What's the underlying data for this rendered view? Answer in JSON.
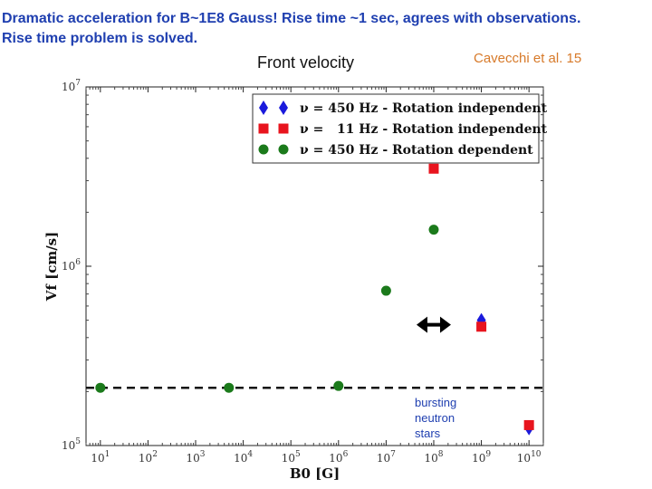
{
  "headline": {
    "line1": "Dramatic acceleration for B~1E8 Gauss! Rise time ~1 sec, agrees with observations.",
    "line2": "Rise time problem is solved."
  },
  "subtitle": "Front velocity",
  "citation": "Cavecchi et al. 15",
  "annotation": [
    "bursting",
    "neutron",
    "stars"
  ],
  "colors": {
    "headline": "#1f3fb0",
    "citation": "#d77a2a",
    "blue": "#1a1adc",
    "red": "#e8141e",
    "green": "#1b7a1b"
  },
  "chart_data": {
    "type": "scatter",
    "xlabel": "B0 [G]",
    "ylabel": "Vf [cm/s]",
    "xscale": "log",
    "yscale": "log",
    "xlim": [
      5,
      20000000000
    ],
    "ylim": [
      100000,
      10000000
    ],
    "xticks": [
      10,
      100,
      1000,
      10000,
      100000,
      1000000,
      10000000,
      100000000,
      1000000000,
      10000000000
    ],
    "xtick_labels": [
      "10^1",
      "10^2",
      "10^3",
      "10^4",
      "10^5",
      "10^6",
      "10^7",
      "10^8",
      "10^9",
      "10^10"
    ],
    "yticks": [
      100000,
      1000000,
      10000000
    ],
    "ytick_labels": [
      "10^5",
      "10^6",
      "10^7"
    ],
    "legend_position": "top-right",
    "series": [
      {
        "name": "ν = 450 Hz - Rotation independent",
        "marker": "diamond",
        "color": "#1a1adc",
        "points": [
          [
            1000000000,
            500000
          ],
          [
            10000000000,
            125000
          ]
        ]
      },
      {
        "name": "ν =   11 Hz - Rotation independent",
        "marker": "square",
        "color": "#e8141e",
        "points": [
          [
            100000000,
            3500000
          ],
          [
            1000000000,
            460000
          ],
          [
            10000000000,
            130000
          ]
        ]
      },
      {
        "name": "ν = 450 Hz - Rotation dependent",
        "marker": "circle",
        "color": "#1b7a1b",
        "points": [
          [
            10,
            210000
          ],
          [
            5000,
            210000
          ],
          [
            1000000,
            215000
          ],
          [
            10000000,
            730000
          ],
          [
            100000000,
            1600000
          ]
        ]
      }
    ],
    "reference_line": {
      "y": 210000,
      "style": "dashed"
    }
  }
}
